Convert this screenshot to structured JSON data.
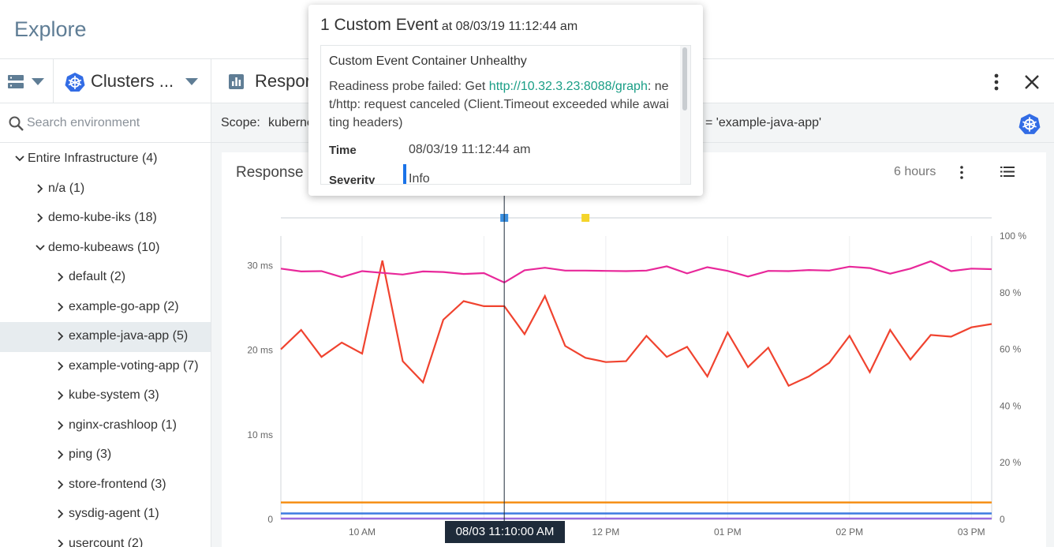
{
  "page": {
    "title": "Explore"
  },
  "toolbar": {
    "clusters_label": "Clusters ...",
    "dashboard_label": "Respor"
  },
  "search": {
    "placeholder": "Search environment"
  },
  "tree": [
    {
      "label": "Entire Infrastructure (4)",
      "level": 0,
      "expanded": true,
      "selected": false
    },
    {
      "label": "n/a (1)",
      "level": 1,
      "expanded": false,
      "selected": false
    },
    {
      "label": "demo-kube-iks (18)",
      "level": 1,
      "expanded": false,
      "selected": false
    },
    {
      "label": "demo-kubeaws (10)",
      "level": 1,
      "expanded": true,
      "selected": false
    },
    {
      "label": "default (2)",
      "level": 2,
      "expanded": false,
      "selected": false
    },
    {
      "label": "example-go-app (2)",
      "level": 2,
      "expanded": false,
      "selected": false
    },
    {
      "label": "example-java-app (5)",
      "level": 2,
      "expanded": false,
      "selected": true
    },
    {
      "label": "example-voting-app (7)",
      "level": 2,
      "expanded": false,
      "selected": false
    },
    {
      "label": "kube-system (3)",
      "level": 2,
      "expanded": false,
      "selected": false
    },
    {
      "label": "nginx-crashloop (1)",
      "level": 2,
      "expanded": false,
      "selected": false
    },
    {
      "label": "ping (3)",
      "level": 2,
      "expanded": false,
      "selected": false
    },
    {
      "label": "store-frontend (3)",
      "level": 2,
      "expanded": false,
      "selected": false
    },
    {
      "label": "sysdig-agent (1)",
      "level": 2,
      "expanded": false,
      "selected": false
    },
    {
      "label": "usercount (2)",
      "level": 2,
      "expanded": false,
      "selected": false
    }
  ],
  "scope": {
    "label": "Scope:",
    "value_start": "kuberne",
    "value_end": "= 'example-java-app'"
  },
  "panel": {
    "title": "Response",
    "time_range": "6 hours"
  },
  "tooltip": {
    "count_text": "1 Custom Event",
    "at_text": "at 08/03/19 11:12:44 am",
    "event_name": "Custom Event Container Unhealthy",
    "desc_before": "Readiness probe failed: Get ",
    "desc_link": "http://10.32.3.23:8088/graph",
    "desc_after": ": net/http: request canceled (Client.Timeout exceeded while awaiting headers)",
    "time_label": "Time",
    "time_value": "08/03/19 11:12:44 am",
    "severity_label": "Severity",
    "severity_value": "Info"
  },
  "cursor_label": "08/03 11:10:00 AM",
  "colors": {
    "pink": "#e8289a",
    "red": "#f0432f",
    "orange": "#f58a0a",
    "blue": "#3e7be0",
    "purple": "#9a6be0",
    "event_blue": "#3b8fe0",
    "event_yellow": "#f4d42a",
    "link": "#1a9e86"
  },
  "chart_data": {
    "type": "line",
    "x_ticks": [
      "10 AM",
      "11 AM",
      "12 PM",
      "01 PM",
      "02 PM",
      "03 PM"
    ],
    "y_ticks_left": [
      "0",
      "10 ms",
      "20 ms",
      "30 ms"
    ],
    "y_ticks_right": [
      "0",
      "20 %",
      "40 %",
      "60 %",
      "80 %",
      "100 %"
    ],
    "ylim_left": [
      0,
      33.5
    ],
    "ylim_right": [
      0,
      100
    ],
    "x_range": [
      "09:20",
      "15:10"
    ],
    "grid": true,
    "events": [
      {
        "time": "11:10",
        "color": "#3b8fe0"
      },
      {
        "time": "11:50",
        "color": "#f4d42a"
      }
    ],
    "series": [
      {
        "axis": "right",
        "color": "#e8289a",
        "x": [
          "09:20",
          "09:30",
          "09:40",
          "09:50",
          "10:00",
          "10:10",
          "10:20",
          "10:30",
          "10:40",
          "10:50",
          "11:00",
          "11:10",
          "11:20",
          "11:30",
          "11:40",
          "11:50",
          "12:00",
          "12:10",
          "12:20",
          "12:30",
          "12:40",
          "12:50",
          "13:00",
          "13:10",
          "13:20",
          "13:30",
          "13:40",
          "13:50",
          "14:00",
          "14:10",
          "14:20",
          "14:30",
          "14:40",
          "14:50",
          "15:00",
          "15:10"
        ],
        "values": [
          88.5,
          87.5,
          87.6,
          85.5,
          87.6,
          87.0,
          86.4,
          87.5,
          87.3,
          86.6,
          86.9,
          83.6,
          87.9,
          88.8,
          87.8,
          87.8,
          87.7,
          87.6,
          87.8,
          89.3,
          86.8,
          89.0,
          87.7,
          85.7,
          87.7,
          87.6,
          88.0,
          87.8,
          89.2,
          88.7,
          86.7,
          88.5,
          91.1,
          87.6,
          88.5,
          88.3
        ]
      },
      {
        "axis": "left",
        "color": "#f0432f",
        "x": [
          "09:20",
          "09:30",
          "09:40",
          "09:50",
          "10:00",
          "10:10",
          "10:20",
          "10:30",
          "10:40",
          "10:50",
          "11:00",
          "11:10",
          "11:20",
          "11:30",
          "11:40",
          "11:50",
          "12:00",
          "12:10",
          "12:20",
          "12:30",
          "12:40",
          "12:50",
          "13:00",
          "13:10",
          "13:20",
          "13:30",
          "13:40",
          "13:50",
          "14:00",
          "14:10",
          "14:20",
          "14:30",
          "14:40",
          "14:50",
          "15:00",
          "15:10"
        ],
        "values": [
          20.1,
          22.4,
          19.2,
          20.9,
          19.6,
          30.6,
          18.7,
          16.2,
          23.6,
          25.8,
          25.2,
          25.2,
          21.9,
          26.4,
          20.5,
          19.1,
          18.6,
          18.7,
          21.7,
          19.2,
          20.4,
          16.9,
          22.1,
          18.0,
          20.3,
          15.8,
          16.9,
          18.5,
          21.7,
          17.4,
          22.4,
          18.9,
          21.8,
          21.6,
          22.7,
          23.1
        ]
      },
      {
        "axis": "left",
        "color": "#f58a0a",
        "x": [
          "09:20",
          "15:10"
        ],
        "values": [
          2.0,
          2.0
        ]
      },
      {
        "axis": "left",
        "color": "#3e7be0",
        "x": [
          "09:20",
          "15:10"
        ],
        "values": [
          0.7,
          0.7
        ]
      },
      {
        "axis": "left",
        "color": "#9a6be0",
        "x": [
          "09:20",
          "15:10"
        ],
        "values": [
          0.1,
          0.1
        ]
      }
    ]
  }
}
